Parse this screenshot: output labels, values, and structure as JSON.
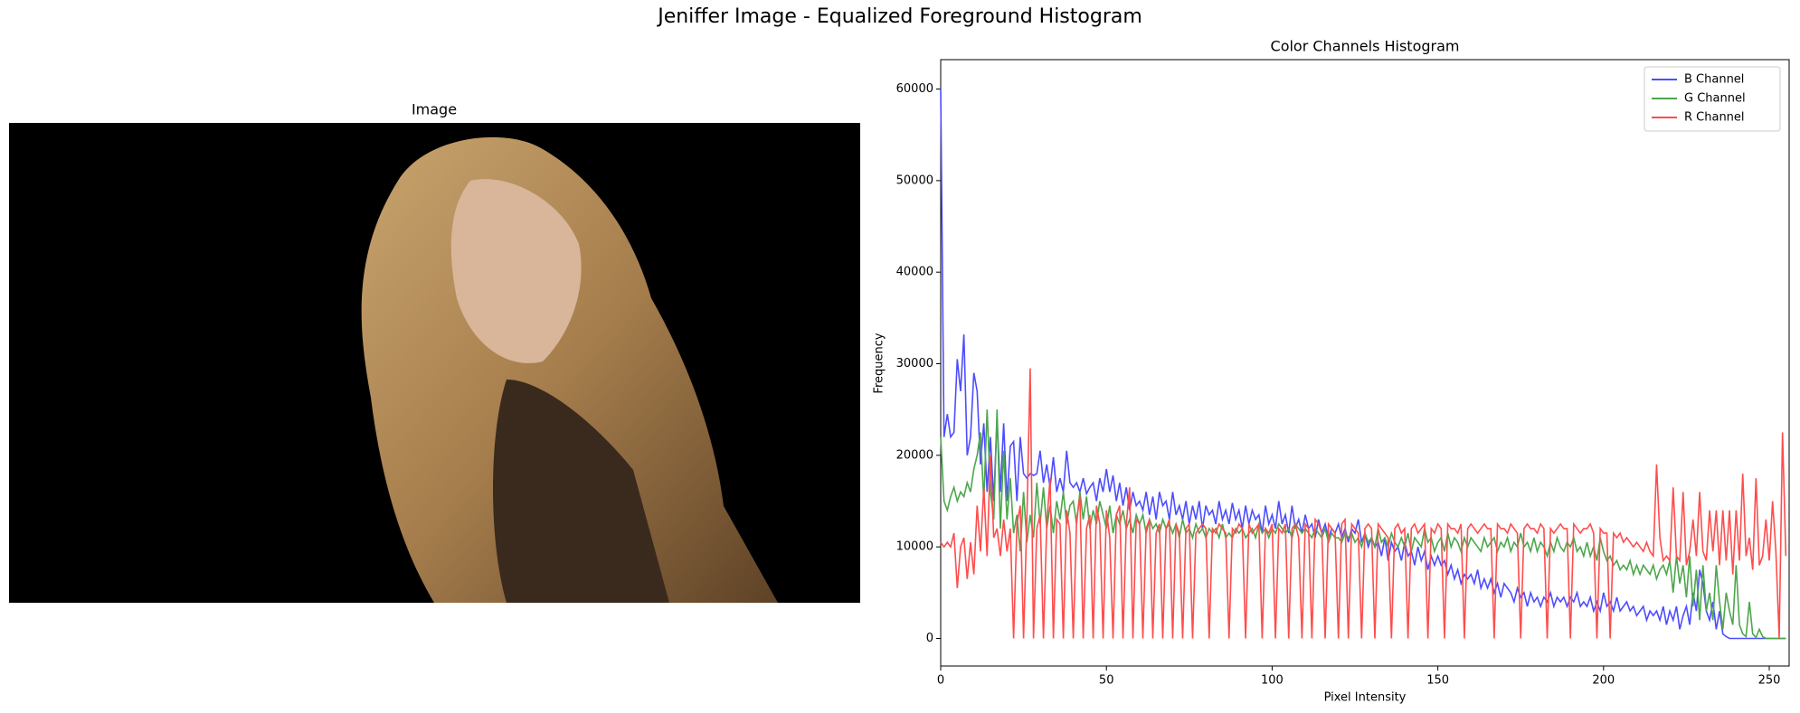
{
  "title": "Jeniffer Image - Equalized Foreground Histogram",
  "image_panel": {
    "title": "Image"
  },
  "chart_data": {
    "type": "line",
    "title": "Color Channels Histogram",
    "x_label": "Pixel Intensity",
    "y_label": "Frequency",
    "xlim": [
      0,
      256
    ],
    "ylim": [
      -3010,
      63210
    ],
    "xticks": [
      0,
      50,
      100,
      150,
      200,
      250
    ],
    "yticks": [
      0,
      10000,
      20000,
      30000,
      40000,
      50000,
      60000
    ],
    "legend": "upper right",
    "x": [
      0,
      1,
      2,
      3,
      4,
      5,
      6,
      7,
      8,
      9,
      10,
      11,
      12,
      13,
      14,
      15,
      16,
      17,
      18,
      19,
      20,
      21,
      22,
      23,
      24,
      25,
      26,
      27,
      28,
      29,
      30,
      31,
      32,
      33,
      34,
      35,
      36,
      37,
      38,
      39,
      40,
      41,
      42,
      43,
      44,
      45,
      46,
      47,
      48,
      49,
      50,
      51,
      52,
      53,
      54,
      55,
      56,
      57,
      58,
      59,
      60,
      61,
      62,
      63,
      64,
      65,
      66,
      67,
      68,
      69,
      70,
      71,
      72,
      73,
      74,
      75,
      76,
      77,
      78,
      79,
      80,
      81,
      82,
      83,
      84,
      85,
      86,
      87,
      88,
      89,
      90,
      91,
      92,
      93,
      94,
      95,
      96,
      97,
      98,
      99,
      100,
      101,
      102,
      103,
      104,
      105,
      106,
      107,
      108,
      109,
      110,
      111,
      112,
      113,
      114,
      115,
      116,
      117,
      118,
      119,
      120,
      121,
      122,
      123,
      124,
      125,
      126,
      127,
      128,
      129,
      130,
      131,
      132,
      133,
      134,
      135,
      136,
      137,
      138,
      139,
      140,
      141,
      142,
      143,
      144,
      145,
      146,
      147,
      148,
      149,
      150,
      151,
      152,
      153,
      154,
      155,
      156,
      157,
      158,
      159,
      160,
      161,
      162,
      163,
      164,
      165,
      166,
      167,
      168,
      169,
      170,
      171,
      172,
      173,
      174,
      175,
      176,
      177,
      178,
      179,
      180,
      181,
      182,
      183,
      184,
      185,
      186,
      187,
      188,
      189,
      190,
      191,
      192,
      193,
      194,
      195,
      196,
      197,
      198,
      199,
      200,
      201,
      202,
      203,
      204,
      205,
      206,
      207,
      208,
      209,
      210,
      211,
      212,
      213,
      214,
      215,
      216,
      217,
      218,
      219,
      220,
      221,
      222,
      223,
      224,
      225,
      226,
      227,
      228,
      229,
      230,
      231,
      232,
      233,
      234,
      235,
      236,
      237,
      238,
      239,
      240,
      241,
      242,
      243,
      244,
      245,
      246,
      247,
      248,
      249,
      250,
      251,
      252,
      253,
      254,
      255
    ],
    "series": [
      {
        "name": "B Channel",
        "color": "#4d4dff",
        "values": [
          60000,
          22000,
          24500,
          22000,
          22500,
          30500,
          27000,
          33200,
          20000,
          22000,
          29000,
          27000,
          19000,
          23500,
          16000,
          22000,
          15000,
          24000,
          16000,
          23500,
          15000,
          21000,
          21500,
          15000,
          22000,
          18000,
          17500,
          18000,
          17800,
          18000,
          20500,
          17000,
          19000,
          16500,
          19800,
          16000,
          17500,
          16000,
          20500,
          17000,
          16500,
          17000,
          16000,
          17500,
          15800,
          16500,
          17000,
          15000,
          17500,
          16000,
          18500,
          16000,
          17800,
          15000,
          17000,
          14500,
          16500,
          14000,
          16000,
          14500,
          15000,
          14000,
          16000,
          13500,
          15500,
          13000,
          16000,
          14500,
          15000,
          13000,
          16000,
          13500,
          14500,
          13000,
          15000,
          12500,
          14500,
          13000,
          15000,
          12000,
          14500,
          13500,
          14000,
          12500,
          15000,
          13000,
          14000,
          12500,
          14800,
          13000,
          14000,
          12000,
          14500,
          12500,
          14000,
          13000,
          13500,
          11500,
          14500,
          12500,
          13500,
          12000,
          15000,
          12500,
          13500,
          11500,
          14500,
          12000,
          13000,
          11500,
          13500,
          12000,
          12500,
          11000,
          13000,
          11500,
          12500,
          11000,
          12000,
          11500,
          12500,
          11000,
          12000,
          10500,
          12000,
          11500,
          13000,
          10500,
          11500,
          10000,
          11000,
          10000,
          10500,
          9000,
          11000,
          8500,
          10500,
          9500,
          10000,
          8500,
          10500,
          9000,
          9500,
          8000,
          10000,
          8500,
          9500,
          7500,
          9000,
          8000,
          9000,
          8000,
          8500,
          7000,
          8000,
          6500,
          7500,
          6000,
          7000,
          6500,
          7000,
          6000,
          7500,
          5500,
          6500,
          5500,
          6500,
          5000,
          6000,
          4500,
          6000,
          5500,
          5000,
          4000,
          5500,
          4500,
          5000,
          3500,
          5000,
          4000,
          4500,
          3500,
          4500,
          4000,
          5000,
          3500,
          4500,
          4000,
          4500,
          3500,
          4500,
          4000,
          5000,
          3500,
          4000,
          3500,
          4500,
          3000,
          4000,
          3000,
          5000,
          3500,
          4000,
          3000,
          4500,
          3000,
          3500,
          4000,
          3000,
          3500,
          2500,
          3000,
          3500,
          2000,
          3000,
          2500,
          3000,
          2000,
          3500,
          1500,
          3000,
          2000,
          3500,
          1000,
          2500,
          3500,
          1500,
          5000,
          3000,
          7500,
          6000,
          3000,
          2000,
          4000,
          1000,
          3000,
          500,
          200,
          0,
          0,
          0,
          0,
          0,
          0,
          0,
          0,
          0,
          0,
          0,
          0,
          0,
          0,
          0,
          0,
          0,
          0
        ]
      },
      {
        "name": "G Channel",
        "color": "#4da64d",
        "values": [
          22000,
          15000,
          14000,
          15500,
          16500,
          15000,
          16000,
          15500,
          17000,
          16000,
          18500,
          20000,
          22500,
          15000,
          25000,
          16000,
          13000,
          25000,
          12000,
          20500,
          13000,
          17500,
          11500,
          13500,
          9500,
          16000,
          10500,
          13500,
          11000,
          17000,
          12500,
          16500,
          12000,
          14500,
          11500,
          15000,
          13000,
          16000,
          12500,
          14500,
          15000,
          12500,
          16000,
          13000,
          15500,
          12000,
          14000,
          12500,
          15000,
          13500,
          12000,
          14500,
          11500,
          13500,
          12500,
          14000,
          12000,
          13000,
          11500,
          13500,
          12500,
          13500,
          11500,
          13000,
          12000,
          12500,
          11500,
          13000,
          12000,
          12500,
          11500,
          12500,
          11000,
          13000,
          11500,
          12000,
          11000,
          12500,
          11500,
          12000,
          11000,
          12000,
          11500,
          12000,
          11000,
          12500,
          11000,
          11500,
          11000,
          12000,
          11500,
          12000,
          11000,
          11500,
          12000,
          11000,
          12500,
          11500,
          12000,
          11000,
          12000,
          11500,
          12500,
          12000,
          11500,
          12000,
          11000,
          12500,
          12000,
          11500,
          12000,
          11500,
          11000,
          12000,
          11500,
          11000,
          12000,
          10500,
          11500,
          11000,
          11000,
          10500,
          11500,
          11000,
          11500,
          10500,
          11000,
          10000,
          11500,
          10500,
          11000,
          10000,
          12000,
          10500,
          11000,
          10000,
          11500,
          10500,
          10000,
          11000,
          10000,
          11500,
          9500,
          11000,
          10500,
          10000,
          12000,
          10500,
          11000,
          9500,
          10500,
          11000,
          9500,
          11500,
          10000,
          11000,
          10500,
          9500,
          11000,
          10000,
          11000,
          10500,
          10000,
          9500,
          11000,
          10000,
          10500,
          11000,
          9500,
          10500,
          10000,
          11000,
          9500,
          10500,
          10000,
          11500,
          10000,
          10500,
          9500,
          11000,
          9500,
          10500,
          10000,
          9000,
          10500,
          9500,
          11000,
          10000,
          9500,
          10500,
          10000,
          11000,
          9500,
          10000,
          9000,
          10500,
          9000,
          10000,
          8500,
          11000,
          9500,
          8500,
          9000,
          8000,
          8500,
          7500,
          8000,
          7500,
          8500,
          7000,
          8000,
          7000,
          8000,
          7500,
          7000,
          8000,
          6500,
          7500,
          8000,
          7000,
          8500,
          5000,
          9000,
          6000,
          8000,
          4500,
          9000,
          3500,
          7500,
          2000,
          8000,
          3000,
          5000,
          2000,
          8000,
          4000,
          1000,
          5000,
          3000,
          1500,
          8000,
          1500,
          500,
          200,
          4000,
          500,
          100,
          1000,
          200,
          0,
          0,
          0,
          0,
          0,
          0,
          0
        ]
      },
      {
        "name": "R Channel",
        "color": "#ff4d4d",
        "values": [
          10500,
          10000,
          10500,
          10000,
          11500,
          5500,
          10000,
          11000,
          6500,
          10500,
          7000,
          14500,
          9500,
          16500,
          9000,
          20000,
          11000,
          12000,
          9000,
          13000,
          9500,
          12000,
          0,
          12500,
          14500,
          0,
          13000,
          29500,
          0,
          12000,
          13500,
          0,
          12500,
          17500,
          0,
          13000,
          12500,
          0,
          14000,
          11500,
          0,
          13000,
          15500,
          0,
          12000,
          13500,
          0,
          14500,
          12500,
          0,
          14000,
          11000,
          0,
          13500,
          14500,
          0,
          12500,
          16500,
          0,
          13000,
          12500,
          0,
          12000,
          13000,
          0,
          11500,
          12500,
          0,
          12000,
          13000,
          0,
          12500,
          11500,
          0,
          12000,
          12500,
          0,
          11500,
          12000,
          12500,
          12000,
          0,
          12000,
          11500,
          12500,
          12000,
          11500,
          0,
          12000,
          11500,
          12500,
          12000,
          0,
          12500,
          11500,
          12000,
          12500,
          0,
          12000,
          11500,
          12500,
          0,
          12000,
          11500,
          12500,
          0,
          12000,
          12500,
          11000,
          0,
          12500,
          12000,
          0,
          13000,
          12500,
          11500,
          0,
          12500,
          12000,
          11500,
          0,
          12500,
          13000,
          0,
          12500,
          12000,
          11500,
          0,
          12000,
          12500,
          12000,
          0,
          12500,
          12000,
          11500,
          11000,
          0,
          12000,
          12500,
          11500,
          12000,
          0,
          12000,
          12500,
          11500,
          12000,
          12500,
          0,
          12000,
          11500,
          12500,
          12000,
          0,
          12500,
          12000,
          12000,
          11500,
          12500,
          0,
          12000,
          12500,
          12000,
          11500,
          12000,
          12500,
          12000,
          12000,
          0,
          12500,
          12000,
          12000,
          11500,
          12500,
          12000,
          11500,
          0,
          12000,
          12500,
          12000,
          12000,
          11500,
          12500,
          12000,
          0,
          12000,
          11500,
          12000,
          12500,
          12000,
          12000,
          0,
          12500,
          12000,
          11500,
          12000,
          12000,
          12500,
          11500,
          0,
          12000,
          11500,
          11500,
          0,
          11500,
          11000,
          11500,
          10500,
          11000,
          10500,
          10000,
          10500,
          10000,
          9500,
          10500,
          9500,
          9000,
          19000,
          11000,
          8500,
          9000,
          8500,
          16500,
          9000,
          8500,
          16000,
          8000,
          9500,
          13000,
          9000,
          16000,
          9500,
          8500,
          14000,
          9500,
          14000,
          8000,
          14000,
          8500,
          14000,
          7000,
          14000,
          8500,
          18000,
          9000,
          11000,
          7500,
          17500,
          8000,
          9000,
          13000,
          8500,
          15000,
          9500,
          0,
          22500,
          9000
        ]
      }
    ]
  }
}
